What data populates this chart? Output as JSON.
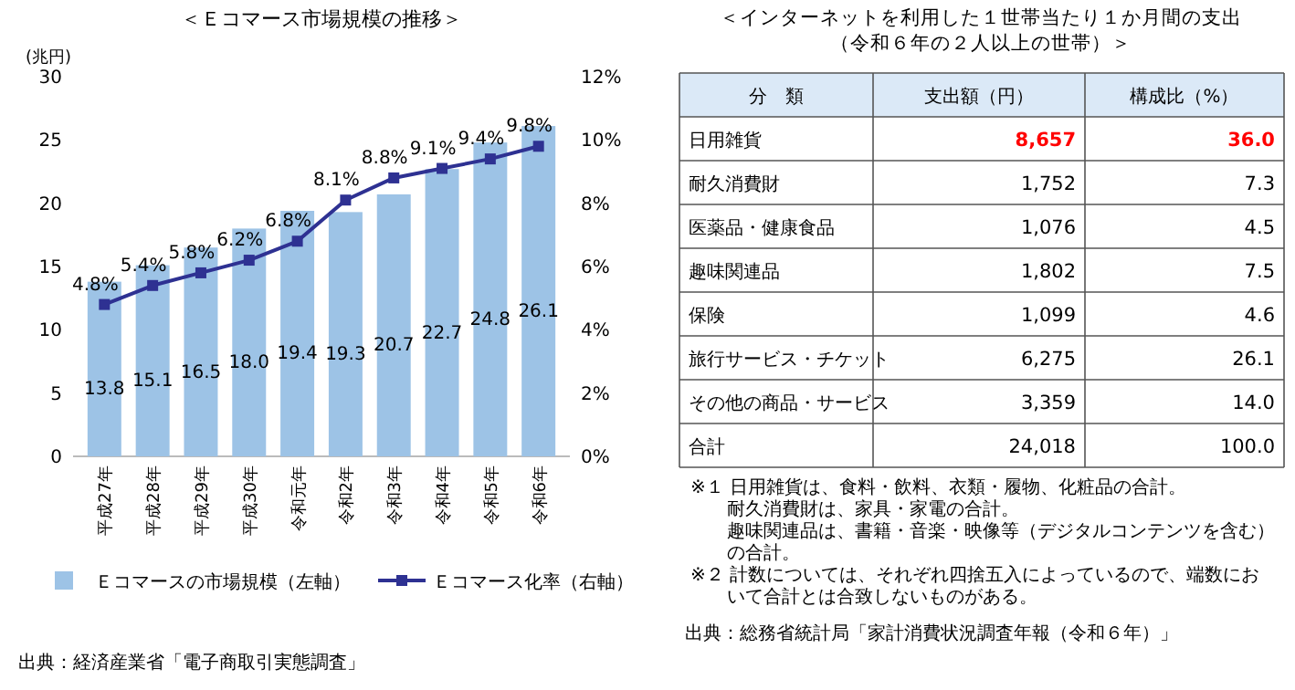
{
  "chart_data": [
    {
      "type": "bar",
      "title": "＜Ｅコマース市場規模の推移＞",
      "ylabel": "(兆円)",
      "categories": [
        "平成27年",
        "平成28年",
        "平成29年",
        "平成30年",
        "令和元年",
        "令和2年",
        "令和3年",
        "令和4年",
        "令和5年",
        "令和6年"
      ],
      "series": [
        {
          "name": "Ｅコマースの市場規模（左軸）",
          "type": "bar",
          "color": "#9dc3e6",
          "values": [
            13.8,
            15.1,
            16.5,
            18.0,
            19.4,
            19.3,
            20.7,
            22.7,
            24.8,
            26.1
          ],
          "value_labels": [
            "13.8",
            "15.1",
            "16.5",
            "18.0",
            "19.4",
            "19.3",
            "20.7",
            "22.7",
            "24.8",
            "26.1"
          ]
        },
        {
          "name": "Ｅコマース化率（右軸）",
          "type": "line",
          "axis": "y2",
          "color": "#2e3192",
          "marker": "square",
          "values": [
            4.8,
            5.4,
            5.8,
            6.2,
            6.8,
            8.1,
            8.8,
            9.1,
            9.4,
            9.8
          ],
          "value_labels": [
            "4.8%",
            "5.4%",
            "5.8%",
            "6.2%",
            "6.8%",
            "8.1%",
            "8.8%",
            "9.1%",
            "9.4%",
            "9.8%"
          ]
        }
      ],
      "ylim": [
        0,
        30
      ],
      "yticks": [
        0,
        5,
        10,
        15,
        20,
        25,
        30
      ],
      "y2lim": [
        0,
        12
      ],
      "y2ticks": [
        {
          "value": 0,
          "label": "0%"
        },
        {
          "value": 2,
          "label": "2%"
        },
        {
          "value": 4,
          "label": "4%"
        },
        {
          "value": 6,
          "label": "6%"
        },
        {
          "value": 8,
          "label": "8%"
        },
        {
          "value": 10,
          "label": "10%"
        },
        {
          "value": 12,
          "label": "12%"
        }
      ],
      "legend": "bottom",
      "annotations": [
        "出典：経済産業省「電子商取引実態調査」"
      ]
    },
    {
      "type": "other",
      "title": "＜インターネットを利用した１世帯当たり１か月間の支出",
      "subtitle": "（令和６年の２人以上の世帯）＞",
      "xlabel": "分　類",
      "categories": [
        "日用雑貨",
        "耐久消費財",
        "医薬品・健康食品",
        "趣味関連品",
        "保険",
        "旅行サービス・チケット",
        "その他の商品・サービス",
        "合計"
      ],
      "series": [
        {
          "name": "支出額（円）",
          "values": [
            8657,
            1752,
            1076,
            1802,
            1099,
            6275,
            3359,
            24018
          ],
          "value_labels": [
            "8,657",
            "1,752",
            "1,076",
            "1,802",
            "1,099",
            "6,275",
            "3,359",
            "24,018"
          ],
          "colors": [
            "#ff0000",
            "#000000",
            "#000000",
            "#000000",
            "#000000",
            "#000000",
            "#000000",
            "#000000"
          ]
        },
        {
          "name": "構成比（%）",
          "values": [
            36.0,
            7.3,
            4.5,
            7.5,
            4.6,
            26.1,
            14.0,
            100.0
          ],
          "value_labels": [
            "36.0",
            "7.3",
            "4.5",
            "7.5",
            "4.6",
            "26.1",
            "14.0",
            "100.0"
          ],
          "colors": [
            "#ff0000",
            "#000000",
            "#000000",
            "#000000",
            "#000000",
            "#000000",
            "#000000",
            "#000000"
          ]
        }
      ],
      "annotations": [
        "※１ 日用雑貨は、食料・飲料、衣類・履物、化粧品の合計。",
        "耐久消費財は、家具・家電の合計。",
        "趣味関連品は、書籍・音楽・映像等（デジタルコンテンツを含む）の合計。",
        "※２ 計数については、それぞれ四捨五入によっているので、端数において合計とは合致しないものがある。",
        "出典：総務省統計局「家計消費状況調査年報（令和６年）」"
      ]
    }
  ]
}
